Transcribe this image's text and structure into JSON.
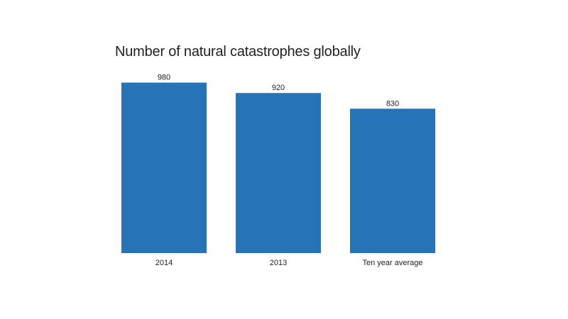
{
  "chart_data": {
    "type": "bar",
    "title": "Number of natural catastrophes globally",
    "categories": [
      "2014",
      "2013",
      "Ten year average"
    ],
    "values": [
      980,
      920,
      830
    ],
    "value_labels": [
      "980",
      "920",
      "830"
    ],
    "xlabel": "",
    "ylabel": "",
    "ylim": [
      0,
      1000
    ],
    "grid": false,
    "legend": "none",
    "colors": {
      "bar": "#2673b8",
      "text": "#222222",
      "background": "#ffffff"
    }
  }
}
